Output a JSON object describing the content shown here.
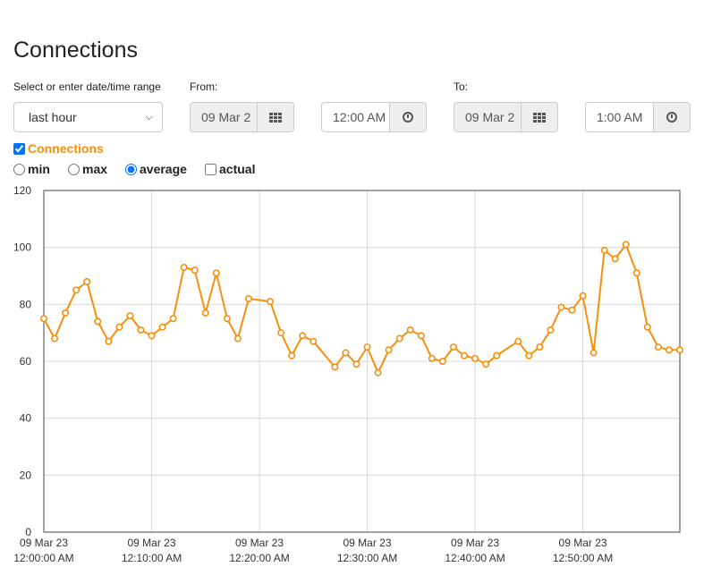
{
  "page": {
    "title": "Connections"
  },
  "range": {
    "label": "Select or enter date/time range",
    "value": "last hour",
    "from_label": "From:",
    "from_date": "09 Mar 2",
    "from_time": "12:00 AM",
    "to_label": "To:",
    "to_date": "09 Mar 2",
    "to_time": "1:00 AM"
  },
  "series_toggle": {
    "label": "Connections",
    "checked": true,
    "color": "#f5900f"
  },
  "modes": [
    {
      "label": "min",
      "type": "radio",
      "checked": false
    },
    {
      "label": "max",
      "type": "radio",
      "checked": false
    },
    {
      "label": "average",
      "type": "radio",
      "checked": true
    },
    {
      "label": "actual",
      "type": "checkbox",
      "checked": false
    }
  ],
  "chart_data": {
    "type": "line",
    "title": "",
    "xlabel": "",
    "ylabel": "",
    "ylim": [
      0,
      120
    ],
    "xlim_minutes": [
      0,
      59
    ],
    "yticks": [
      0,
      20,
      40,
      60,
      80,
      100,
      120
    ],
    "xticks": [
      {
        "at": 0,
        "date": "09 Mar 23",
        "time": "12:00:00 AM"
      },
      {
        "at": 10,
        "date": "09 Mar 23",
        "time": "12:10:00 AM"
      },
      {
        "at": 20,
        "date": "09 Mar 23",
        "time": "12:20:00 AM"
      },
      {
        "at": 30,
        "date": "09 Mar 23",
        "time": "12:30:00 AM"
      },
      {
        "at": 40,
        "date": "09 Mar 23",
        "time": "12:40:00 AM"
      },
      {
        "at": 50,
        "date": "09 Mar 23",
        "time": "12:50:00 AM"
      }
    ],
    "grid": true,
    "series": [
      {
        "color": "#f5900f",
        "points": [
          [
            0,
            75
          ],
          [
            1,
            68
          ],
          [
            2,
            77
          ],
          [
            3,
            85
          ],
          [
            4,
            88
          ],
          [
            5,
            74
          ],
          [
            6,
            67
          ],
          [
            7,
            72
          ],
          [
            8,
            76
          ],
          [
            9,
            71
          ],
          [
            10,
            69
          ],
          [
            11,
            72
          ],
          [
            12,
            75
          ],
          [
            13,
            93
          ],
          [
            14,
            92
          ],
          [
            15,
            77
          ],
          [
            16,
            91
          ],
          [
            17,
            75
          ],
          [
            18,
            68
          ],
          [
            19,
            82
          ],
          [
            21,
            81
          ],
          [
            22,
            70
          ],
          [
            23,
            62
          ],
          [
            24,
            69
          ],
          [
            25,
            67
          ],
          [
            27,
            58
          ],
          [
            28,
            63
          ],
          [
            29,
            59
          ],
          [
            30,
            65
          ],
          [
            31,
            56
          ],
          [
            32,
            64
          ],
          [
            33,
            68
          ],
          [
            34,
            71
          ],
          [
            35,
            69
          ],
          [
            36,
            61
          ],
          [
            37,
            60
          ],
          [
            38,
            65
          ],
          [
            39,
            62
          ],
          [
            40,
            61
          ],
          [
            41,
            59
          ],
          [
            42,
            62
          ],
          [
            44,
            67
          ],
          [
            45,
            62
          ],
          [
            46,
            65
          ],
          [
            47,
            71
          ],
          [
            48,
            79
          ],
          [
            49,
            78
          ],
          [
            50,
            83
          ],
          [
            51,
            63
          ],
          [
            52,
            99
          ],
          [
            53,
            96
          ],
          [
            54,
            101
          ],
          [
            55,
            91
          ],
          [
            56,
            72
          ],
          [
            57,
            65
          ],
          [
            58,
            64
          ],
          [
            59,
            64
          ]
        ]
      }
    ]
  }
}
